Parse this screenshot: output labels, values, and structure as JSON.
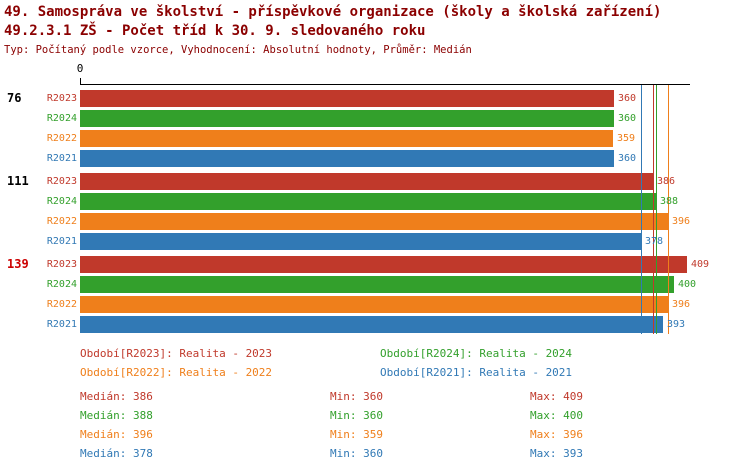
{
  "header": {
    "title_line1": "49. Samospráva ve školství - příspěvkové organizace (školy a školská zařízení)",
    "title_line2": "49.2.3.1 ZŠ - Počet tříd k 30. 9. sledovaného roku",
    "subtitle": "Typ: Počítaný podle vzorce, Vyhodnocení: Absolutní hodnoty, Průměr: Medián",
    "title_color": "#8b0000"
  },
  "chart_data": {
    "type": "bar",
    "orientation": "horizontal",
    "x_axis": {
      "origin_label": "0",
      "min": 0,
      "max_visible_value": 409,
      "grid": false
    },
    "series_order": [
      "R2023",
      "R2024",
      "R2022",
      "R2021"
    ],
    "series_colors": {
      "R2023": "#c0392b",
      "R2024": "#33a02c",
      "R2022": "#ef7f1b",
      "R2021": "#3179b5"
    },
    "groups": [
      {
        "label": "76",
        "label_color": "#000000",
        "values": {
          "R2023": 360,
          "R2024": 360,
          "R2022": 359,
          "R2021": 360
        }
      },
      {
        "label": "111",
        "label_color": "#000000",
        "values": {
          "R2023": 386,
          "R2024": 388,
          "R2022": 396,
          "R2021": 378
        }
      },
      {
        "label": "139",
        "label_color": "#cc0000",
        "values": {
          "R2023": 409,
          "R2024": 400,
          "R2022": 396,
          "R2021": 393
        }
      }
    ],
    "median_lines": {
      "R2023": 386,
      "R2024": 388,
      "R2022": 396,
      "R2021": 378
    }
  },
  "legend": {
    "items": [
      {
        "series": "R2023",
        "text": "Období[R2023]: Realita - 2023",
        "col": 0,
        "row": 0
      },
      {
        "series": "R2024",
        "text": "Období[R2024]: Realita - 2024",
        "col": 1,
        "row": 0
      },
      {
        "series": "R2022",
        "text": "Období[R2022]: Realita - 2022",
        "col": 0,
        "row": 1
      },
      {
        "series": "R2021",
        "text": "Období[R2021]: Realita - 2021",
        "col": 1,
        "row": 1
      }
    ]
  },
  "stats": {
    "labels": {
      "median": "Medián",
      "min": "Min",
      "max": "Max"
    },
    "rows": [
      {
        "series": "R2023",
        "median": 386,
        "min": 360,
        "max": 409
      },
      {
        "series": "R2024",
        "median": 388,
        "min": 360,
        "max": 400
      },
      {
        "series": "R2022",
        "median": 396,
        "min": 359,
        "max": 396
      },
      {
        "series": "R2021",
        "median": 378,
        "min": 360,
        "max": 393
      }
    ]
  }
}
